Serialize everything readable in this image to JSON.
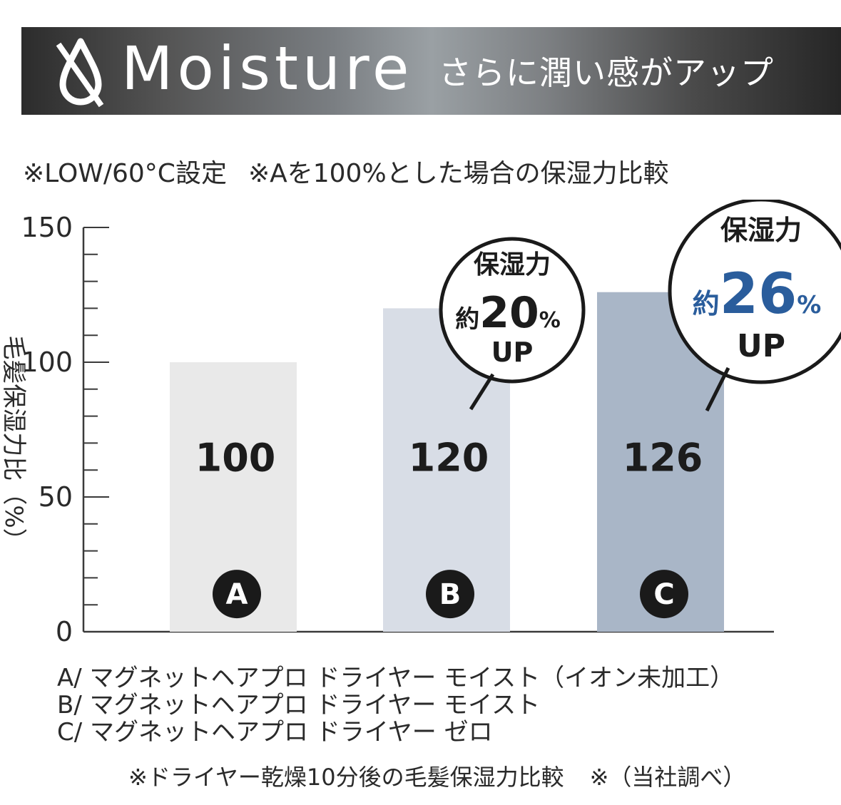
{
  "header": {
    "title": "Moisture",
    "subtitle": "さらに潤い感がアップ",
    "icon": "moisture-water-drop-icon"
  },
  "conditions": [
    "※LOW/60°C設定",
    "※Aを100%とした場合の保湿力比較"
  ],
  "chart_data": {
    "type": "bar",
    "categories": [
      "A",
      "B",
      "C"
    ],
    "values": [
      100,
      120,
      126
    ],
    "ylim": [
      0,
      150
    ],
    "yticks": [
      "0",
      "50",
      "100",
      "150"
    ],
    "ylabel": "毛髪保湿力比（%）",
    "data_labels": [
      "100",
      "120",
      "126"
    ],
    "bar_colors": [
      "#e9e9e9",
      "#d8dde6",
      "#a9b6c7"
    ],
    "grid": false,
    "callouts": [
      {
        "category": "B",
        "title": "保湿力",
        "prefix": "約",
        "value": "20",
        "unit": "%",
        "suffix": "UP",
        "value_color": "#1c1c1c"
      },
      {
        "category": "C",
        "title": "保湿力",
        "prefix": "約",
        "value": "26",
        "unit": "%",
        "suffix": "UP",
        "value_color": "#2a5d9c"
      }
    ]
  },
  "legend": [
    "A/ マグネットヘアプロ ドライヤー モイスト（イオン未加工）",
    "B/ マグネットヘアプロ ドライヤー モイスト",
    "C/ マグネットヘアプロ ドライヤー ゼロ"
  ],
  "footnotes": [
    "※ドライヤー乾燥10分後の毛髪保湿力比較",
    "※（当社調べ）"
  ]
}
